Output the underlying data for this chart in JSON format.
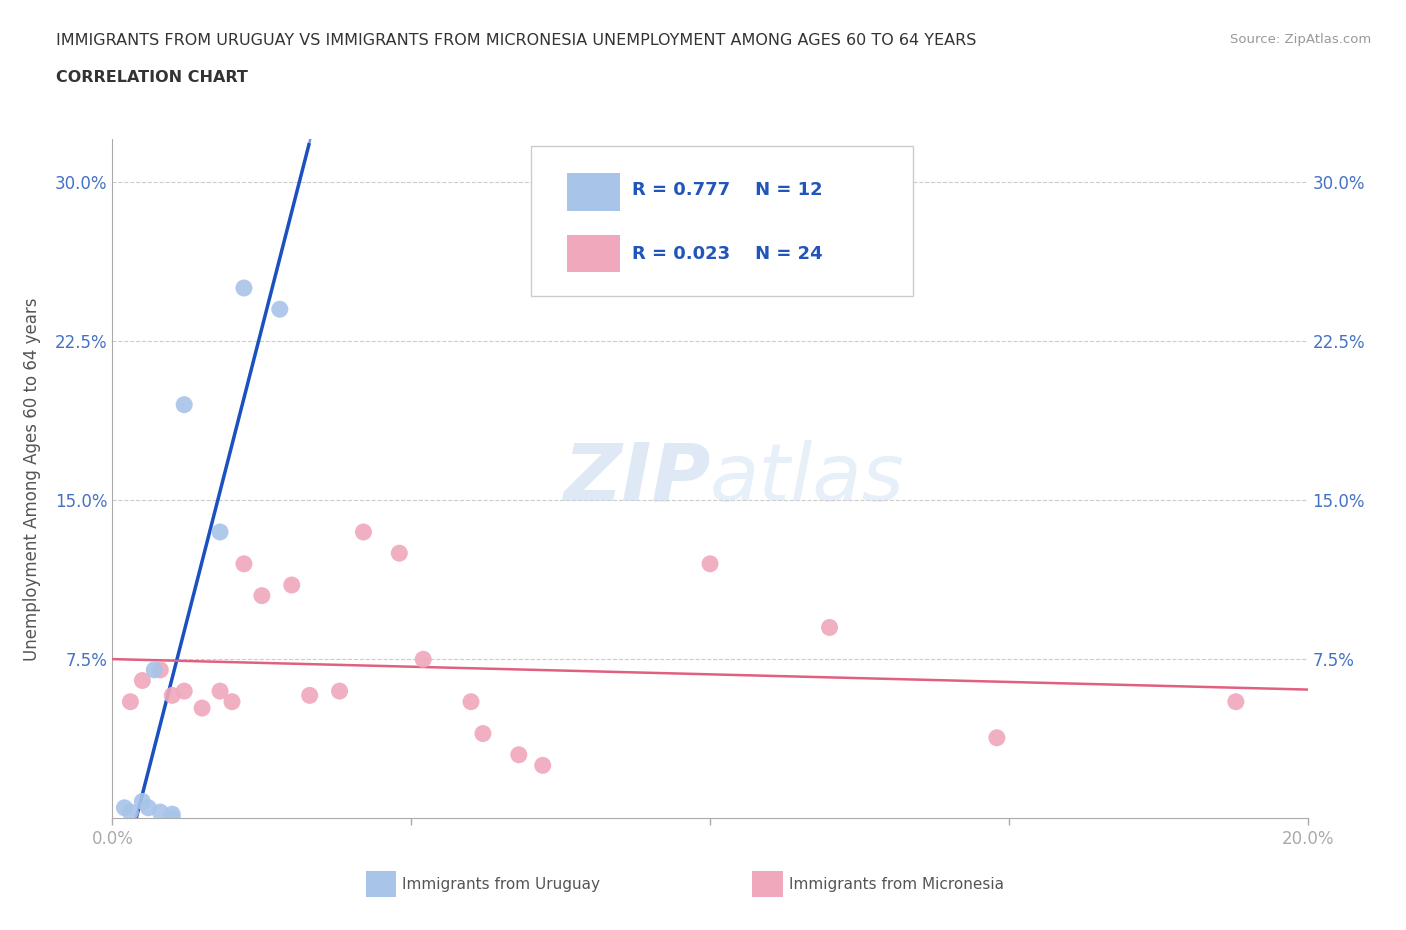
{
  "title_line1": "IMMIGRANTS FROM URUGUAY VS IMMIGRANTS FROM MICRONESIA UNEMPLOYMENT AMONG AGES 60 TO 64 YEARS",
  "title_line2": "CORRELATION CHART",
  "source_text": "Source: ZipAtlas.com",
  "ylabel": "Unemployment Among Ages 60 to 64 years",
  "xlim": [
    0.0,
    0.2
  ],
  "ylim": [
    0.0,
    0.32
  ],
  "xticks": [
    0.0,
    0.05,
    0.1,
    0.15,
    0.2
  ],
  "xticklabels": [
    "0.0%",
    "",
    "",
    "",
    "20.0%"
  ],
  "yticks": [
    0.0,
    0.075,
    0.15,
    0.225,
    0.3
  ],
  "yticklabels": [
    "",
    "7.5%",
    "15.0%",
    "22.5%",
    "30.0%"
  ],
  "uruguay_color": "#a8c4e8",
  "micronesia_color": "#f0a8bc",
  "uruguay_line_color": "#1a50c0",
  "micronesia_line_color": "#e06080",
  "R_uruguay": 0.777,
  "N_uruguay": 12,
  "R_micronesia": 0.023,
  "N_micronesia": 24,
  "watermark_zip": "ZIP",
  "watermark_atlas": "atlas",
  "background_color": "#ffffff",
  "grid_color": "#cccccc",
  "uruguay_x": [
    0.002,
    0.003,
    0.005,
    0.006,
    0.007,
    0.008,
    0.01,
    0.01,
    0.012,
    0.018,
    0.022,
    0.028
  ],
  "uruguay_y": [
    0.005,
    0.003,
    0.008,
    0.005,
    0.07,
    0.003,
    0.0,
    0.002,
    0.195,
    0.135,
    0.25,
    0.24
  ],
  "micronesia_x": [
    0.003,
    0.005,
    0.008,
    0.01,
    0.012,
    0.015,
    0.018,
    0.02,
    0.022,
    0.025,
    0.03,
    0.033,
    0.038,
    0.042,
    0.048,
    0.052,
    0.06,
    0.062,
    0.068,
    0.072,
    0.1,
    0.12,
    0.148,
    0.188
  ],
  "micronesia_y": [
    0.055,
    0.065,
    0.07,
    0.058,
    0.06,
    0.052,
    0.06,
    0.055,
    0.12,
    0.105,
    0.11,
    0.058,
    0.06,
    0.135,
    0.125,
    0.075,
    0.055,
    0.04,
    0.03,
    0.025,
    0.12,
    0.09,
    0.038,
    0.055
  ],
  "legend_R1": "R = 0.777",
  "legend_N1": "N = 12",
  "legend_R2": "R = 0.023",
  "legend_N2": "N = 24",
  "tick_color_right": "#4472c4",
  "tick_color_left": "#4472c4"
}
